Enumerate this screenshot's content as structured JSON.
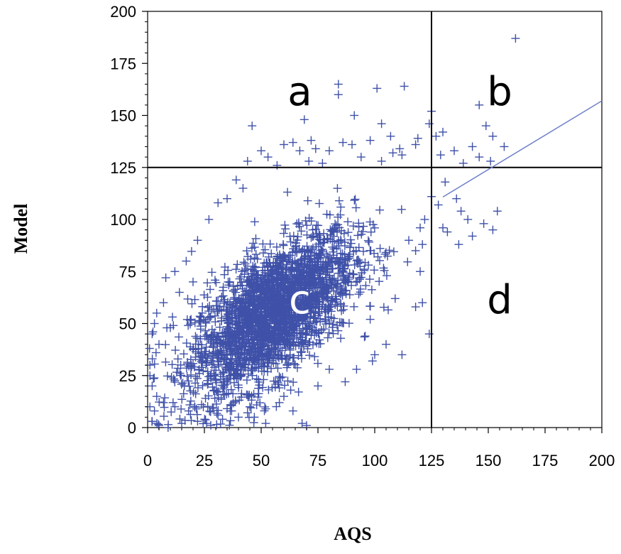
{
  "chart_data": {
    "type": "scatter",
    "xlabel": "AQS",
    "ylabel": "Model",
    "xlim": [
      0,
      200
    ],
    "ylim": [
      0,
      200
    ],
    "xticks": [
      "0",
      "25",
      "50",
      "75",
      "100",
      "125",
      "150",
      "175",
      "200"
    ],
    "yticks": [
      "0",
      "25",
      "50",
      "75",
      "100",
      "125",
      "150",
      "175",
      "200"
    ],
    "grid": false,
    "marker": "+",
    "marker_color": "#3f51a8",
    "threshold_lines": {
      "x": 125,
      "y": 125,
      "color": "#000000"
    },
    "regression_line": {
      "x": [
        0,
        200
      ],
      "y": [
        25,
        157
      ],
      "color": "#6f7fc8"
    },
    "region_labels": [
      {
        "text": "a",
        "x": 67,
        "y": 155,
        "color": "#000000"
      },
      {
        "text": "b",
        "x": 155,
        "y": 155,
        "color": "#000000"
      },
      {
        "text": "c",
        "x": 67,
        "y": 55,
        "color": "#ffffff"
      },
      {
        "text": "d",
        "x": 155,
        "y": 55,
        "color": "#000000"
      }
    ],
    "cluster": {
      "center_x": 55,
      "center_y": 55,
      "count": 2600,
      "note": "dense point cloud, correlated"
    },
    "points": [
      [
        162,
        187
      ],
      [
        84,
        165
      ],
      [
        101,
        163
      ],
      [
        113,
        164
      ],
      [
        84,
        160
      ],
      [
        146,
        155
      ],
      [
        69,
        148
      ],
      [
        46,
        145
      ],
      [
        125,
        152
      ],
      [
        149,
        145
      ],
      [
        124,
        146
      ],
      [
        127,
        140
      ],
      [
        130,
        142
      ],
      [
        143,
        135
      ],
      [
        152,
        140
      ],
      [
        157,
        135
      ],
      [
        135,
        133
      ],
      [
        129,
        131
      ],
      [
        139,
        127
      ],
      [
        146,
        130
      ],
      [
        151,
        128
      ],
      [
        131,
        118
      ],
      [
        136,
        110
      ],
      [
        138,
        104
      ],
      [
        141,
        100
      ],
      [
        148,
        98
      ],
      [
        154,
        104
      ],
      [
        152,
        95
      ],
      [
        143,
        92
      ],
      [
        137,
        88
      ],
      [
        132,
        94
      ],
      [
        130,
        96
      ],
      [
        128,
        107
      ],
      [
        125,
        111
      ],
      [
        122,
        100
      ],
      [
        120,
        96
      ],
      [
        121,
        88
      ],
      [
        118,
        85
      ],
      [
        115,
        90
      ],
      [
        124,
        45
      ],
      [
        112,
        35
      ],
      [
        105,
        40
      ],
      [
        120,
        75
      ],
      [
        121,
        60
      ],
      [
        118,
        58
      ],
      [
        109,
        62
      ],
      [
        98,
        52
      ],
      [
        100,
        35
      ],
      [
        99,
        32
      ],
      [
        92,
        28
      ],
      [
        87,
        22
      ],
      [
        80,
        28
      ],
      [
        75,
        20
      ],
      [
        63,
        18
      ],
      [
        60,
        15
      ],
      [
        68,
        2
      ],
      [
        70,
        1
      ],
      [
        52,
        2
      ],
      [
        47,
        5
      ],
      [
        40,
        5
      ],
      [
        33,
        4
      ],
      [
        22,
        3
      ],
      [
        15,
        2
      ],
      [
        9,
        0
      ],
      [
        2,
        3
      ],
      [
        1,
        10
      ],
      [
        4,
        15
      ],
      [
        2,
        20
      ],
      [
        5,
        1
      ],
      [
        7,
        12
      ],
      [
        3,
        8
      ],
      [
        12,
        10
      ],
      [
        18,
        8
      ],
      [
        26,
        2
      ],
      [
        31,
        6
      ],
      [
        37,
        8
      ],
      [
        45,
        10
      ],
      [
        52,
        9
      ],
      [
        58,
        12
      ],
      [
        64,
        8
      ],
      [
        1,
        30
      ],
      [
        2,
        45
      ],
      [
        3,
        50
      ],
      [
        5,
        40
      ],
      [
        7,
        60
      ],
      [
        8,
        72
      ],
      [
        12,
        75
      ],
      [
        14,
        65
      ],
      [
        17,
        80
      ],
      [
        22,
        90
      ],
      [
        27,
        100
      ],
      [
        35,
        110
      ],
      [
        42,
        115
      ],
      [
        44,
        128
      ],
      [
        50,
        133
      ],
      [
        53,
        130
      ],
      [
        57,
        126
      ],
      [
        60,
        136
      ],
      [
        64,
        137
      ],
      [
        67,
        133
      ],
      [
        71,
        128
      ],
      [
        74,
        134
      ],
      [
        77,
        127
      ],
      [
        80,
        133
      ],
      [
        86,
        137
      ],
      [
        90,
        136
      ],
      [
        94,
        130
      ],
      [
        98,
        138
      ],
      [
        103,
        128
      ],
      [
        108,
        132
      ],
      [
        112,
        131
      ],
      [
        118,
        136
      ],
      [
        91,
        150
      ],
      [
        103,
        146
      ],
      [
        107,
        140
      ],
      [
        111,
        134
      ],
      [
        119,
        139
      ],
      [
        72,
        138
      ],
      [
        39,
        119
      ],
      [
        31,
        108
      ],
      [
        20,
        70
      ],
      [
        4,
        55
      ],
      [
        10,
        48
      ]
    ]
  }
}
